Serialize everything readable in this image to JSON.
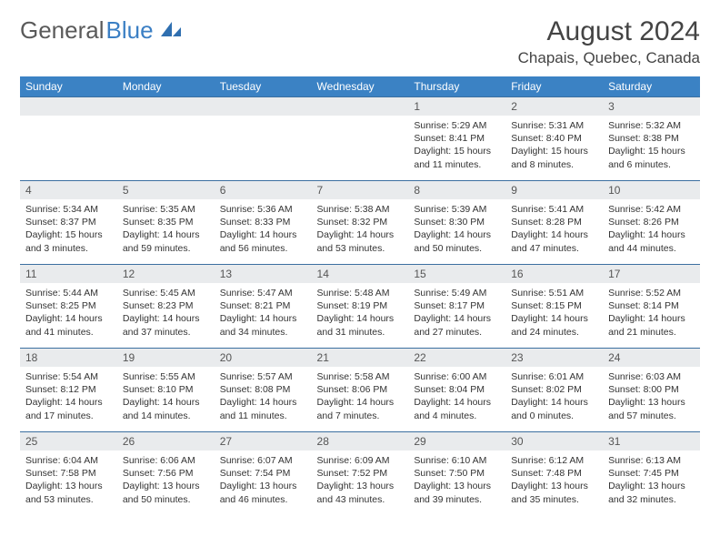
{
  "brand": {
    "part1": "General",
    "part2": "Blue"
  },
  "title": "August 2024",
  "location": "Chapais, Quebec, Canada",
  "colors": {
    "header_bg": "#3b82c4",
    "header_text": "#ffffff",
    "daynum_bg": "#e9ebed",
    "row_border": "#3b6fa0",
    "text": "#333333",
    "logo_gray": "#5a5a5a",
    "logo_blue": "#3b7fc4"
  },
  "weekdays": [
    "Sunday",
    "Monday",
    "Tuesday",
    "Wednesday",
    "Thursday",
    "Friday",
    "Saturday"
  ],
  "weeks": [
    [
      null,
      null,
      null,
      null,
      {
        "n": "1",
        "sr": "Sunrise: 5:29 AM",
        "ss": "Sunset: 8:41 PM",
        "dl": "Daylight: 15 hours and 11 minutes."
      },
      {
        "n": "2",
        "sr": "Sunrise: 5:31 AM",
        "ss": "Sunset: 8:40 PM",
        "dl": "Daylight: 15 hours and 8 minutes."
      },
      {
        "n": "3",
        "sr": "Sunrise: 5:32 AM",
        "ss": "Sunset: 8:38 PM",
        "dl": "Daylight: 15 hours and 6 minutes."
      }
    ],
    [
      {
        "n": "4",
        "sr": "Sunrise: 5:34 AM",
        "ss": "Sunset: 8:37 PM",
        "dl": "Daylight: 15 hours and 3 minutes."
      },
      {
        "n": "5",
        "sr": "Sunrise: 5:35 AM",
        "ss": "Sunset: 8:35 PM",
        "dl": "Daylight: 14 hours and 59 minutes."
      },
      {
        "n": "6",
        "sr": "Sunrise: 5:36 AM",
        "ss": "Sunset: 8:33 PM",
        "dl": "Daylight: 14 hours and 56 minutes."
      },
      {
        "n": "7",
        "sr": "Sunrise: 5:38 AM",
        "ss": "Sunset: 8:32 PM",
        "dl": "Daylight: 14 hours and 53 minutes."
      },
      {
        "n": "8",
        "sr": "Sunrise: 5:39 AM",
        "ss": "Sunset: 8:30 PM",
        "dl": "Daylight: 14 hours and 50 minutes."
      },
      {
        "n": "9",
        "sr": "Sunrise: 5:41 AM",
        "ss": "Sunset: 8:28 PM",
        "dl": "Daylight: 14 hours and 47 minutes."
      },
      {
        "n": "10",
        "sr": "Sunrise: 5:42 AM",
        "ss": "Sunset: 8:26 PM",
        "dl": "Daylight: 14 hours and 44 minutes."
      }
    ],
    [
      {
        "n": "11",
        "sr": "Sunrise: 5:44 AM",
        "ss": "Sunset: 8:25 PM",
        "dl": "Daylight: 14 hours and 41 minutes."
      },
      {
        "n": "12",
        "sr": "Sunrise: 5:45 AM",
        "ss": "Sunset: 8:23 PM",
        "dl": "Daylight: 14 hours and 37 minutes."
      },
      {
        "n": "13",
        "sr": "Sunrise: 5:47 AM",
        "ss": "Sunset: 8:21 PM",
        "dl": "Daylight: 14 hours and 34 minutes."
      },
      {
        "n": "14",
        "sr": "Sunrise: 5:48 AM",
        "ss": "Sunset: 8:19 PM",
        "dl": "Daylight: 14 hours and 31 minutes."
      },
      {
        "n": "15",
        "sr": "Sunrise: 5:49 AM",
        "ss": "Sunset: 8:17 PM",
        "dl": "Daylight: 14 hours and 27 minutes."
      },
      {
        "n": "16",
        "sr": "Sunrise: 5:51 AM",
        "ss": "Sunset: 8:15 PM",
        "dl": "Daylight: 14 hours and 24 minutes."
      },
      {
        "n": "17",
        "sr": "Sunrise: 5:52 AM",
        "ss": "Sunset: 8:14 PM",
        "dl": "Daylight: 14 hours and 21 minutes."
      }
    ],
    [
      {
        "n": "18",
        "sr": "Sunrise: 5:54 AM",
        "ss": "Sunset: 8:12 PM",
        "dl": "Daylight: 14 hours and 17 minutes."
      },
      {
        "n": "19",
        "sr": "Sunrise: 5:55 AM",
        "ss": "Sunset: 8:10 PM",
        "dl": "Daylight: 14 hours and 14 minutes."
      },
      {
        "n": "20",
        "sr": "Sunrise: 5:57 AM",
        "ss": "Sunset: 8:08 PM",
        "dl": "Daylight: 14 hours and 11 minutes."
      },
      {
        "n": "21",
        "sr": "Sunrise: 5:58 AM",
        "ss": "Sunset: 8:06 PM",
        "dl": "Daylight: 14 hours and 7 minutes."
      },
      {
        "n": "22",
        "sr": "Sunrise: 6:00 AM",
        "ss": "Sunset: 8:04 PM",
        "dl": "Daylight: 14 hours and 4 minutes."
      },
      {
        "n": "23",
        "sr": "Sunrise: 6:01 AM",
        "ss": "Sunset: 8:02 PM",
        "dl": "Daylight: 14 hours and 0 minutes."
      },
      {
        "n": "24",
        "sr": "Sunrise: 6:03 AM",
        "ss": "Sunset: 8:00 PM",
        "dl": "Daylight: 13 hours and 57 minutes."
      }
    ],
    [
      {
        "n": "25",
        "sr": "Sunrise: 6:04 AM",
        "ss": "Sunset: 7:58 PM",
        "dl": "Daylight: 13 hours and 53 minutes."
      },
      {
        "n": "26",
        "sr": "Sunrise: 6:06 AM",
        "ss": "Sunset: 7:56 PM",
        "dl": "Daylight: 13 hours and 50 minutes."
      },
      {
        "n": "27",
        "sr": "Sunrise: 6:07 AM",
        "ss": "Sunset: 7:54 PM",
        "dl": "Daylight: 13 hours and 46 minutes."
      },
      {
        "n": "28",
        "sr": "Sunrise: 6:09 AM",
        "ss": "Sunset: 7:52 PM",
        "dl": "Daylight: 13 hours and 43 minutes."
      },
      {
        "n": "29",
        "sr": "Sunrise: 6:10 AM",
        "ss": "Sunset: 7:50 PM",
        "dl": "Daylight: 13 hours and 39 minutes."
      },
      {
        "n": "30",
        "sr": "Sunrise: 6:12 AM",
        "ss": "Sunset: 7:48 PM",
        "dl": "Daylight: 13 hours and 35 minutes."
      },
      {
        "n": "31",
        "sr": "Sunrise: 6:13 AM",
        "ss": "Sunset: 7:45 PM",
        "dl": "Daylight: 13 hours and 32 minutes."
      }
    ]
  ]
}
